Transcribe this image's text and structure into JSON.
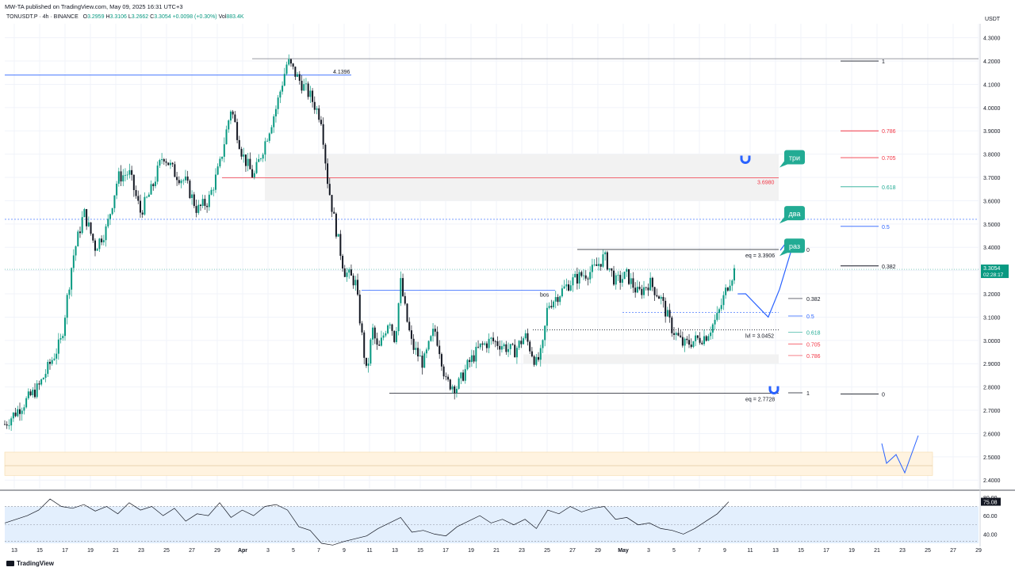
{
  "header": {
    "published": "MW-TA published on TradingView.com, May 09, 2025 16:31 UTC+3",
    "symbol": "TONUSDT.P · 4h · BINANCE",
    "o_label": "O",
    "o": "3.2959",
    "h_label": "H",
    "h": "3.3106",
    "l_label": "L",
    "l": "3.2662",
    "c_label": "C",
    "c": "3.3054",
    "chg": "+0.0098 (+0.30%)",
    "vol_label": "Vol",
    "vol": "883.4K"
  },
  "footer": {
    "brand": "TradingView"
  },
  "colors": {
    "up": "#089981",
    "down": "#131722",
    "blue": "#2962ff",
    "red": "#f23645",
    "green": "#22ab94",
    "orange": "#fff3e0"
  },
  "chart_data": {
    "type": "candlestick",
    "currency": "USDT",
    "ylim": [
      2.36,
      4.36
    ],
    "y_ticks": [
      "4.3000",
      "4.2000",
      "4.1000",
      "4.0000",
      "3.9000",
      "3.8000",
      "3.7000",
      "3.6000",
      "3.5000",
      "3.4000",
      "3.3000",
      "3.2000",
      "3.1000",
      "3.0000",
      "2.9000",
      "2.8000",
      "2.7000",
      "2.6000",
      "2.5000",
      "2.4000"
    ],
    "x_ticks": [
      "13",
      "15",
      "17",
      "19",
      "21",
      "23",
      "25",
      "27",
      "29",
      "Apr",
      "3",
      "5",
      "7",
      "9",
      "11",
      "13",
      "15",
      "17",
      "19",
      "21",
      "23",
      "25",
      "27",
      "29",
      "May",
      "3",
      "5",
      "7",
      "9",
      "11",
      "13",
      "15",
      "17",
      "19",
      "21",
      "23",
      "25",
      "27",
      "29"
    ],
    "last_price": "3.3054",
    "countdown": "02:28:17",
    "price_path": [
      [
        0,
        2.64
      ],
      [
        3,
        2.8
      ],
      [
        5,
        3.0
      ],
      [
        6,
        3.35
      ],
      [
        7,
        3.55
      ],
      [
        8,
        3.4
      ],
      [
        9,
        3.48
      ],
      [
        10,
        3.7
      ],
      [
        11,
        3.72
      ],
      [
        12,
        3.55
      ],
      [
        13,
        3.65
      ],
      [
        14,
        3.8
      ],
      [
        15,
        3.72
      ],
      [
        16,
        3.68
      ],
      [
        17,
        3.56
      ],
      [
        18,
        3.6
      ],
      [
        19,
        3.75
      ],
      [
        20,
        4.0
      ],
      [
        21,
        3.8
      ],
      [
        22,
        3.7
      ],
      [
        23,
        3.85
      ],
      [
        24,
        4.0
      ],
      [
        25,
        4.2
      ],
      [
        26,
        4.12
      ],
      [
        27,
        4.05
      ],
      [
        28,
        3.95
      ],
      [
        28.5,
        3.7
      ],
      [
        29,
        3.55
      ],
      [
        30,
        3.3
      ],
      [
        31,
        3.25
      ],
      [
        31.5,
        3.05
      ],
      [
        32,
        2.85
      ],
      [
        32.5,
        3.05
      ],
      [
        33,
        2.95
      ],
      [
        34,
        3.1
      ],
      [
        34.5,
        3.0
      ],
      [
        35,
        3.25
      ],
      [
        35.5,
        3.1
      ],
      [
        36,
        2.98
      ],
      [
        37,
        2.9
      ],
      [
        38,
        3.05
      ],
      [
        38.5,
        2.95
      ],
      [
        39,
        2.82
      ],
      [
        40,
        2.8
      ],
      [
        41,
        2.9
      ],
      [
        42,
        2.97
      ],
      [
        43,
        3.0
      ],
      [
        44,
        2.98
      ],
      [
        45,
        2.95
      ],
      [
        46,
        3.02
      ],
      [
        47,
        2.9
      ],
      [
        47.5,
        2.95
      ],
      [
        48,
        3.15
      ],
      [
        49,
        3.2
      ],
      [
        50,
        3.25
      ],
      [
        51,
        3.28
      ],
      [
        52,
        3.3
      ],
      [
        53,
        3.36
      ],
      [
        54,
        3.25
      ],
      [
        55,
        3.28
      ],
      [
        56,
        3.2
      ],
      [
        57,
        3.25
      ],
      [
        58,
        3.18
      ],
      [
        59,
        3.05
      ],
      [
        60,
        2.98
      ],
      [
        61,
        3.0
      ],
      [
        62,
        3.02
      ],
      [
        63,
        3.1
      ],
      [
        64,
        3.25
      ],
      [
        64.5,
        3.3
      ]
    ],
    "projection": [
      [
        65.5,
        3.2
      ],
      [
        66.5,
        3.15
      ],
      [
        67.5,
        3.1
      ],
      [
        68.5,
        3.22
      ],
      [
        69.5,
        3.38
      ]
    ],
    "zones": [
      {
        "name": "supply-zone",
        "y0": 3.6,
        "y1": 3.8
      },
      {
        "name": "demand-zone",
        "y0": 2.9,
        "y1": 2.94
      },
      {
        "name": "lower-orange-zone",
        "y0": 2.42,
        "y1": 2.52
      }
    ],
    "levels": [
      {
        "label": "4.1396",
        "value": 4.1396
      },
      {
        "label": "3.6980",
        "value": 3.698
      },
      {
        "label": "eq = 3.3906",
        "value": 3.3906
      },
      {
        "label": "lvl = 3.0452",
        "value": 3.0452
      },
      {
        "label": "eq = 2.7728",
        "value": 2.7728
      },
      {
        "label": "bos",
        "value": 3.215
      }
    ],
    "fib_right": [
      {
        "label": "1",
        "value": 4.2
      },
      {
        "label": "0.786",
        "value": 3.9
      },
      {
        "label": "0.705",
        "value": 3.785
      },
      {
        "label": "0.618",
        "value": 3.66
      },
      {
        "label": "0.5",
        "value": 3.49
      },
      {
        "label": "0.382",
        "value": 3.32
      },
      {
        "label": "0",
        "value": 2.77
      }
    ],
    "fib_mid": [
      {
        "label": "0",
        "value": 3.39
      },
      {
        "label": "0.382",
        "value": 3.18
      },
      {
        "label": "0.5",
        "value": 3.105
      },
      {
        "label": "0.618",
        "value": 3.035
      },
      {
        "label": "0.705",
        "value": 2.985
      },
      {
        "label": "0.786",
        "value": 2.935
      },
      {
        "label": "1",
        "value": 2.775
      }
    ],
    "callouts": [
      {
        "label": "три",
        "value": 3.78
      },
      {
        "label": "два",
        "value": 3.54
      },
      {
        "label": "раз",
        "value": 3.4
      }
    ],
    "rsi": {
      "levels": [
        "80.00",
        "60.00",
        "40.00"
      ],
      "current": "75.08",
      "path": [
        [
          0,
          52
        ],
        [
          2,
          60
        ],
        [
          3,
          66
        ],
        [
          4,
          78
        ],
        [
          5,
          70
        ],
        [
          6,
          68
        ],
        [
          7,
          72
        ],
        [
          8,
          65
        ],
        [
          9,
          70
        ],
        [
          10,
          62
        ],
        [
          11,
          74
        ],
        [
          12,
          66
        ],
        [
          13,
          70
        ],
        [
          14,
          60
        ],
        [
          15,
          68
        ],
        [
          16,
          54
        ],
        [
          17,
          62
        ],
        [
          18,
          60
        ],
        [
          19,
          74
        ],
        [
          20,
          58
        ],
        [
          21,
          66
        ],
        [
          22,
          60
        ],
        [
          23,
          70
        ],
        [
          24,
          72
        ],
        [
          25,
          66
        ],
        [
          26,
          48
        ],
        [
          27,
          44
        ],
        [
          28,
          30
        ],
        [
          29,
          28
        ],
        [
          30,
          32
        ],
        [
          31,
          35
        ],
        [
          32,
          38
        ],
        [
          33,
          46
        ],
        [
          34,
          52
        ],
        [
          35,
          58
        ],
        [
          36,
          42
        ],
        [
          37,
          44
        ],
        [
          38,
          40
        ],
        [
          39,
          38
        ],
        [
          40,
          48
        ],
        [
          41,
          54
        ],
        [
          42,
          60
        ],
        [
          43,
          52
        ],
        [
          44,
          56
        ],
        [
          45,
          50
        ],
        [
          46,
          56
        ],
        [
          47,
          46
        ],
        [
          48,
          66
        ],
        [
          49,
          62
        ],
        [
          50,
          70
        ],
        [
          51,
          64
        ],
        [
          52,
          68
        ],
        [
          53,
          70
        ],
        [
          54,
          56
        ],
        [
          55,
          58
        ],
        [
          56,
          50
        ],
        [
          57,
          52
        ],
        [
          58,
          46
        ],
        [
          59,
          44
        ],
        [
          60,
          40
        ],
        [
          61,
          46
        ],
        [
          62,
          54
        ],
        [
          63,
          62
        ],
        [
          64,
          75
        ]
      ]
    }
  }
}
